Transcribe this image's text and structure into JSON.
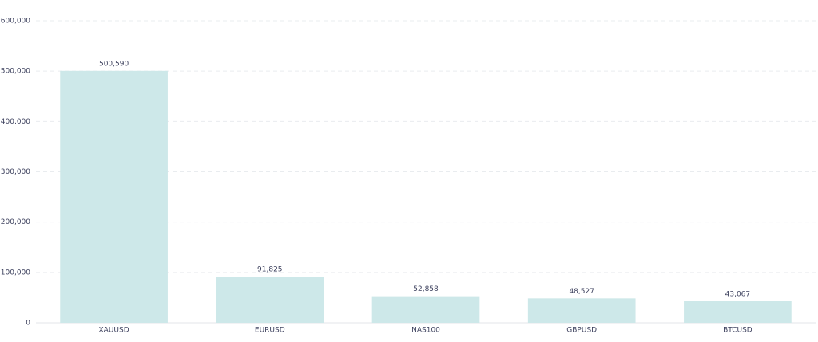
{
  "chart_data": {
    "type": "bar",
    "categories": [
      "XAUUSD",
      "EURUSD",
      "NAS100",
      "GBPUSD",
      "BTCUSD"
    ],
    "values": [
      500590,
      91825,
      52858,
      48527,
      43067
    ],
    "value_labels": [
      "500,590",
      "91,825",
      "52,858",
      "48,527",
      "43,067"
    ],
    "color": "#cde8e9",
    "ylim": [
      0,
      600000
    ],
    "yticks": [
      0,
      {
        "value": 100000,
        "label": "100,000"
      },
      {
        "value": 200000,
        "label": "200,000"
      },
      {
        "value": 300000,
        "label": "300,000"
      },
      {
        "value": 400000,
        "label": "400,000"
      },
      {
        "value": 500000,
        "label": "500,000"
      },
      {
        "value": 600000,
        "label": "600,000"
      }
    ],
    "grid": true
  }
}
